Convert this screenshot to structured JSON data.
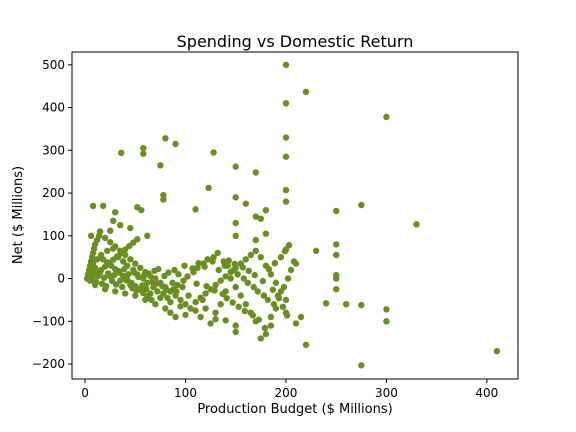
{
  "chart_data": {
    "type": "scatter",
    "title": "Spending vs Domestic Return",
    "xlabel": "Production Budget ($ Millions)",
    "ylabel": "Net ($ Millions)",
    "xlim": [
      -13,
      431
    ],
    "ylim": [
      -235,
      530
    ],
    "xticks": [
      0,
      100,
      200,
      300,
      400
    ],
    "yticks": [
      -200,
      -100,
      0,
      100,
      200,
      300,
      400,
      500
    ],
    "xtick_labels": [
      "0",
      "100",
      "200",
      "300",
      "400"
    ],
    "ytick_labels": [
      "−200",
      "−100",
      "0",
      "100",
      "200",
      "300",
      "400",
      "500"
    ],
    "grid": false,
    "marker_color": "#6b8e23",
    "series": [
      {
        "points": [
          [
            200,
            500
          ],
          [
            220,
            437
          ],
          [
            200,
            410
          ],
          [
            300,
            378
          ],
          [
            80,
            328
          ],
          [
            200,
            330
          ],
          [
            90,
            315
          ],
          [
            58,
            305
          ],
          [
            36,
            294
          ],
          [
            58,
            292
          ],
          [
            128,
            295
          ],
          [
            200,
            285
          ],
          [
            75,
            265
          ],
          [
            150,
            262
          ],
          [
            170,
            248
          ],
          [
            123,
            212
          ],
          [
            200,
            207
          ],
          [
            150,
            190
          ],
          [
            78,
            195
          ],
          [
            78,
            185
          ],
          [
            160,
            175
          ],
          [
            275,
            172
          ],
          [
            8,
            170
          ],
          [
            18,
            170
          ],
          [
            52,
            167
          ],
          [
            56,
            160
          ],
          [
            180,
            160
          ],
          [
            250,
            158
          ],
          [
            110,
            162
          ],
          [
            170,
            145
          ],
          [
            175,
            140
          ],
          [
            30,
            155
          ],
          [
            28,
            135
          ],
          [
            35,
            125
          ],
          [
            25,
            112
          ],
          [
            45,
            118
          ],
          [
            200,
            180
          ],
          [
            330,
            127
          ],
          [
            150,
            130
          ],
          [
            180,
            105
          ],
          [
            150,
            100
          ],
          [
            62,
            100
          ],
          [
            170,
            90
          ],
          [
            230,
            65
          ],
          [
            250,
            80
          ],
          [
            200,
            68
          ],
          [
            250,
            55
          ],
          [
            250,
            8
          ],
          [
            250,
            0
          ],
          [
            210,
            35
          ],
          [
            250,
            -25
          ],
          [
            240,
            -58
          ],
          [
            260,
            -60
          ],
          [
            275,
            -62
          ],
          [
            300,
            -72
          ],
          [
            300,
            -100
          ],
          [
            220,
            -155
          ],
          [
            275,
            -203
          ],
          [
            410,
            -170
          ],
          [
            200,
            -80
          ],
          [
            210,
            -105
          ],
          [
            215,
            -90
          ],
          [
            180,
            -130
          ],
          [
            175,
            -140
          ],
          [
            185,
            -110
          ],
          [
            150,
            -125
          ],
          [
            150,
            -110
          ],
          [
            140,
            -98
          ],
          [
            130,
            -95
          ],
          [
            125,
            -105
          ],
          [
            115,
            -90
          ],
          [
            100,
            -85
          ],
          [
            90,
            -90
          ],
          [
            85,
            -80
          ],
          [
            80,
            -70
          ],
          [
            70,
            -60
          ],
          [
            60,
            -50
          ],
          [
            50,
            -40
          ],
          [
            40,
            -35
          ],
          [
            30,
            -30
          ],
          [
            20,
            -25
          ],
          [
            10,
            -15
          ],
          [
            5,
            -5
          ],
          [
            2,
            0
          ],
          [
            3,
            10
          ],
          [
            4,
            20
          ],
          [
            5,
            30
          ],
          [
            6,
            40
          ],
          [
            7,
            50
          ],
          [
            8,
            60
          ],
          [
            9,
            70
          ],
          [
            10,
            80
          ],
          [
            12,
            90
          ],
          [
            14,
            100
          ],
          [
            15,
            110
          ],
          [
            6,
            100
          ],
          [
            20,
            95
          ],
          [
            25,
            85
          ],
          [
            30,
            75
          ],
          [
            35,
            65
          ],
          [
            40,
            55
          ],
          [
            45,
            45
          ],
          [
            50,
            35
          ],
          [
            55,
            25
          ],
          [
            60,
            15
          ],
          [
            65,
            5
          ],
          [
            70,
            0
          ],
          [
            75,
            -10
          ],
          [
            80,
            -20
          ],
          [
            85,
            -30
          ],
          [
            90,
            -40
          ],
          [
            95,
            -50
          ],
          [
            100,
            -60
          ],
          [
            105,
            -70
          ],
          [
            110,
            -55
          ],
          [
            115,
            -45
          ],
          [
            120,
            -35
          ],
          [
            125,
            -25
          ],
          [
            130,
            -15
          ],
          [
            135,
            -5
          ],
          [
            140,
            5
          ],
          [
            145,
            15
          ],
          [
            150,
            25
          ],
          [
            155,
            35
          ],
          [
            160,
            45
          ],
          [
            165,
            55
          ],
          [
            170,
            65
          ],
          [
            175,
            50
          ],
          [
            180,
            30
          ],
          [
            185,
            10
          ],
          [
            190,
            -10
          ],
          [
            195,
            -30
          ],
          [
            200,
            -50
          ],
          [
            190,
            -70
          ],
          [
            185,
            -90
          ],
          [
            170,
            -100
          ],
          [
            165,
            -80
          ],
          [
            160,
            -60
          ],
          [
            155,
            -40
          ],
          [
            150,
            -20
          ],
          [
            145,
            0
          ],
          [
            140,
            -30
          ],
          [
            135,
            -60
          ],
          [
            130,
            -80
          ],
          [
            120,
            -70
          ],
          [
            110,
            -75
          ],
          [
            95,
            -65
          ],
          [
            85,
            -55
          ],
          [
            75,
            -45
          ],
          [
            65,
            -35
          ],
          [
            55,
            -25
          ],
          [
            45,
            -15
          ],
          [
            35,
            -5
          ],
          [
            25,
            5
          ],
          [
            15,
            15
          ],
          [
            10,
            25
          ],
          [
            8,
            35
          ],
          [
            12,
            45
          ],
          [
            16,
            55
          ],
          [
            22,
            65
          ],
          [
            28,
            70
          ],
          [
            33,
            50
          ],
          [
            38,
            40
          ],
          [
            42,
            30
          ],
          [
            48,
            20
          ],
          [
            52,
            10
          ],
          [
            58,
            0
          ],
          [
            62,
            -10
          ],
          [
            68,
            -20
          ],
          [
            72,
            -30
          ],
          [
            78,
            -35
          ],
          [
            82,
            -45
          ],
          [
            88,
            -25
          ],
          [
            92,
            -15
          ],
          [
            98,
            -5
          ],
          [
            102,
            5
          ],
          [
            108,
            15
          ],
          [
            112,
            25
          ],
          [
            118,
            35
          ],
          [
            122,
            45
          ],
          [
            128,
            50
          ],
          [
            132,
            60
          ],
          [
            138,
            40
          ],
          [
            142,
            30
          ],
          [
            148,
            20
          ],
          [
            152,
            10
          ],
          [
            158,
            0
          ],
          [
            162,
            -10
          ],
          [
            168,
            -20
          ],
          [
            172,
            -30
          ],
          [
            178,
            -40
          ],
          [
            182,
            -50
          ],
          [
            188,
            -60
          ],
          [
            192,
            -40
          ],
          [
            198,
            -20
          ],
          [
            202,
            0
          ],
          [
            205,
            20
          ],
          [
            208,
            40
          ],
          [
            18,
            45
          ],
          [
            22,
            38
          ],
          [
            26,
            30
          ],
          [
            30,
            22
          ],
          [
            34,
            14
          ],
          [
            38,
            6
          ],
          [
            42,
            -2
          ],
          [
            46,
            -10
          ],
          [
            50,
            -18
          ],
          [
            54,
            -26
          ],
          [
            58,
            -34
          ],
          [
            62,
            -42
          ],
          [
            66,
            -50
          ],
          [
            8,
            5
          ],
          [
            12,
            12
          ],
          [
            16,
            20
          ],
          [
            20,
            28
          ],
          [
            24,
            36
          ],
          [
            28,
            44
          ],
          [
            32,
            52
          ],
          [
            36,
            60
          ],
          [
            40,
            68
          ],
          [
            44,
            76
          ],
          [
            48,
            84
          ],
          [
            52,
            92
          ],
          [
            3,
            3
          ],
          [
            4,
            8
          ],
          [
            6,
            12
          ],
          [
            7,
            -2
          ],
          [
            9,
            18
          ],
          [
            11,
            -8
          ],
          [
            13,
            6
          ],
          [
            17,
            -12
          ],
          [
            19,
            2
          ],
          [
            21,
            -18
          ],
          [
            23,
            12
          ],
          [
            27,
            -6
          ],
          [
            29,
            8
          ],
          [
            31,
            -14
          ],
          [
            33,
            18
          ],
          [
            37,
            -20
          ],
          [
            39,
            22
          ],
          [
            41,
            -4
          ],
          [
            43,
            10
          ],
          [
            47,
            -22
          ],
          [
            49,
            14
          ],
          [
            51,
            -28
          ],
          [
            53,
            4
          ],
          [
            57,
            -16
          ],
          [
            59,
            8
          ],
          [
            61,
            -24
          ],
          [
            63,
            12
          ],
          [
            67,
            -8
          ],
          [
            69,
            18
          ],
          [
            71,
            -12
          ],
          [
            73,
            22
          ],
          [
            77,
            -18
          ],
          [
            79,
            6
          ],
          [
            81,
            -26
          ],
          [
            83,
            14
          ],
          [
            87,
            -10
          ],
          [
            89,
            20
          ],
          [
            91,
            -30
          ],
          [
            93,
            10
          ],
          [
            97,
            -20
          ],
          [
            99,
            30
          ],
          [
            103,
            -40
          ],
          [
            107,
            24
          ],
          [
            111,
            -12
          ],
          [
            113,
            36
          ],
          [
            117,
            -50
          ],
          [
            119,
            28
          ],
          [
            121,
            -18
          ],
          [
            127,
            40
          ],
          [
            129,
            -28
          ],
          [
            133,
            20
          ],
          [
            137,
            -36
          ],
          [
            139,
            30
          ],
          [
            141,
            -46
          ],
          [
            143,
            42
          ],
          [
            147,
            -56
          ],
          [
            149,
            34
          ],
          [
            153,
            -66
          ],
          [
            157,
            26
          ],
          [
            159,
            -76
          ],
          [
            163,
            18
          ],
          [
            167,
            -86
          ],
          [
            169,
            8
          ],
          [
            173,
            -96
          ],
          [
            177,
            -6
          ],
          [
            179,
            -116
          ],
          [
            183,
            22
          ],
          [
            187,
            -26
          ],
          [
            189,
            36
          ],
          [
            193,
            -46
          ],
          [
            195,
            50
          ],
          [
            197,
            -66
          ],
          [
            199,
            64
          ],
          [
            201,
            -86
          ],
          [
            203,
            78
          ]
        ]
      }
    ]
  }
}
